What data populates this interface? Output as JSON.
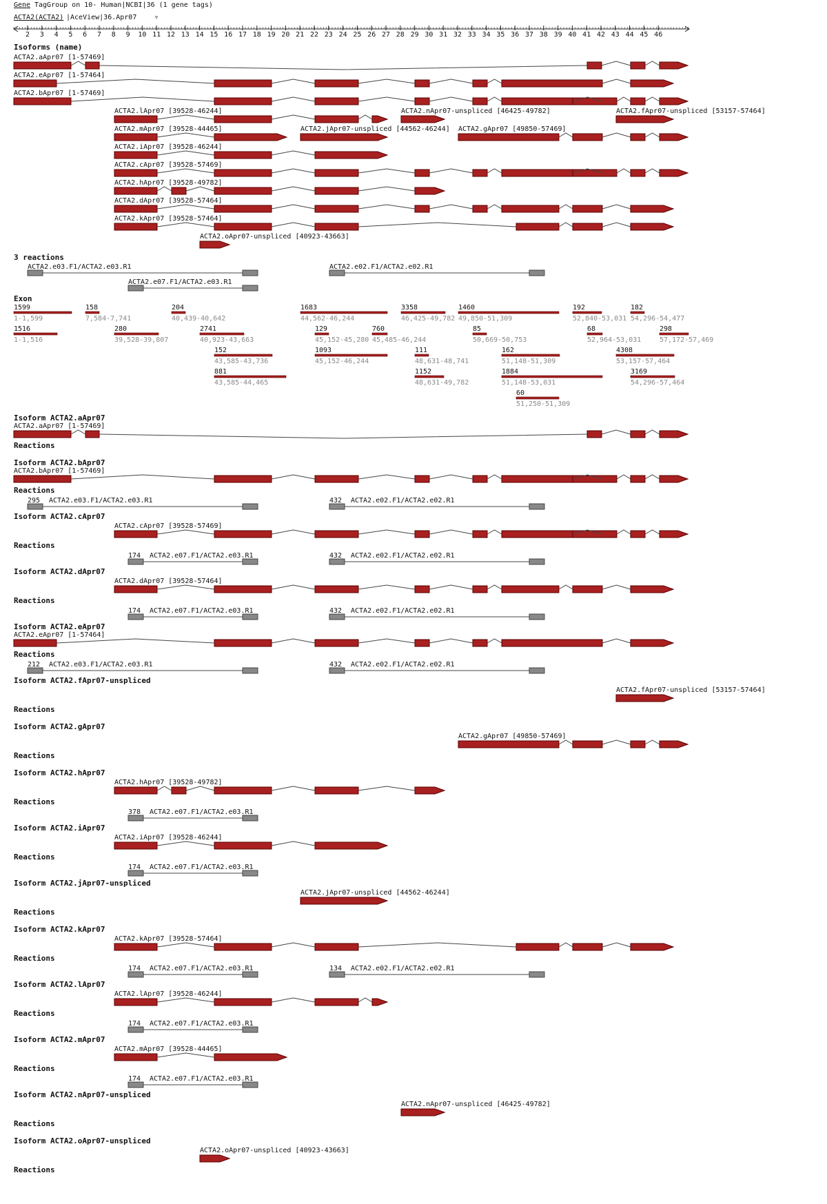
{
  "header": {
    "line1_a": "Gene",
    "line1_b": "TagGroup on 10- Human|NCBI|36 (1 gene tags)",
    "line2_a": "ACTA2(ACTA2)",
    "line2_b": "|AceView|36.Apr07",
    "link_glyph": "▿"
  },
  "ruler": {
    "labels": [
      "2",
      "3",
      "4",
      "5",
      "6",
      "7",
      "8",
      "9",
      "10",
      "11",
      "12",
      "13",
      "14",
      "15",
      "16",
      "17",
      "18",
      "19",
      "20",
      "21",
      "22",
      "23",
      "24",
      "25",
      "26",
      "27",
      "28",
      "29",
      "30",
      "31",
      "32",
      "33",
      "34",
      "35",
      "36",
      "37",
      "38",
      "39",
      "40",
      "41",
      "42",
      "43",
      "44",
      "45",
      "46"
    ]
  },
  "colors": {
    "exon_fill": "#a82020",
    "exon_stroke": "#5a0000",
    "primer": "#888888",
    "intron": "#444444",
    "text": "#111111",
    "muted": "#888888"
  },
  "sections": {
    "isoforms": "Isoforms (name)",
    "reactions": "3 reactions",
    "exon": "Exon"
  },
  "iso": {
    "a": "ACTA2.aApr07 [1-57469]",
    "e": "ACTA2.eApr07 [1-57464]",
    "b": "ACTA2.bApr07 [1-57469]",
    "l": "ACTA2.lApr07 [39528-46244]",
    "n": "ACTA2.nApr07-unspliced [46425-49782]",
    "f": "ACTA2.fApr07-unspliced [53157-57464]",
    "m": "ACTA2.mApr07 [39528-44465]",
    "j": "ACTA2.jApr07-unspliced [44562-46244]",
    "g": "ACTA2.gApr07 [49850-57469]",
    "i": "ACTA2.iApr07 [39528-46244]",
    "c": "ACTA2.cApr07 [39528-57469]",
    "h": "ACTA2.hApr07 [39528-49782]",
    "d": "ACTA2.dApr07 [39528-57464]",
    "k": "ACTA2.kApr07 [39528-57464]",
    "o": "ACTA2.oApr07-unspliced [40923-43663]"
  },
  "rx": {
    "r03": "ACTA2.e03.F1/ACTA2.e03.R1",
    "r02": "ACTA2.e02.F1/ACTA2.e02.R1",
    "r07": "ACTA2.e07.F1/ACTA2.e03.R1"
  },
  "exons": [
    {
      "n": "1599",
      "r": "1-1,599"
    },
    {
      "n": "158",
      "r": "7,584-7,741"
    },
    {
      "n": "204",
      "r": "40,439-40,642"
    },
    {
      "n": "1683",
      "r": "44,562-46,244"
    },
    {
      "n": "3358",
      "r": "46,425-49,782"
    },
    {
      "n": "1460",
      "r": "49,850-51,309"
    },
    {
      "n": "192",
      "r": "52,840-53,031"
    },
    {
      "n": "182",
      "r": "54,296-54,477"
    },
    {
      "n": "1516",
      "r": "1-1,516"
    },
    {
      "n": "280",
      "r": "39,528-39,807"
    },
    {
      "n": "2741",
      "r": "40,923-43,663"
    },
    {
      "n": "129",
      "r": "45,152-45,280"
    },
    {
      "n": "760",
      "r": "45,485-46,244"
    },
    {
      "n": "85",
      "r": "50,669-50,753"
    },
    {
      "n": "68",
      "r": "52,964-53,031"
    },
    {
      "n": "298",
      "r": "57,172-57,469"
    },
    {
      "n": "152",
      "r": "43,585-43,736"
    },
    {
      "n": "1093",
      "r": "45,152-46,244"
    },
    {
      "n": "111",
      "r": "48,631-48,741"
    },
    {
      "n": "162",
      "r": "51,148-51,309"
    },
    {
      "n": "4308",
      "r": "53,157-57,464"
    },
    {
      "n": "881",
      "r": "43,585-44,465"
    },
    {
      "n": "1152",
      "r": "48,631-49,782"
    },
    {
      "n": "1884",
      "r": "51,148-53,031"
    },
    {
      "n": "3169",
      "r": "54,296-57,464"
    },
    {
      "n": "60",
      "r": "51,250-51,309"
    }
  ],
  "details": [
    {
      "title": "Isoform ACTA2.aApr07",
      "iso": "ACTA2.aApr07 [1-57469]",
      "reactions_label": "Reactions",
      "rx": []
    },
    {
      "title": "Isoform ACTA2.bApr07",
      "iso": "ACTA2.bApr07 [1-57469]",
      "reactions_label": "Reactions",
      "rx": [
        {
          "count": "295",
          "name": "ACTA2.e03.F1/ACTA2.e03.R1"
        },
        {
          "count": "432",
          "name": "ACTA2.e02.F1/ACTA2.e02.R1"
        }
      ]
    },
    {
      "title": "Isoform ACTA2.cApr07",
      "iso": "ACTA2.cApr07 [39528-57469]",
      "reactions_label": "Reactions",
      "rx": [
        {
          "count": "174",
          "name": "ACTA2.e07.F1/ACTA2.e03.R1"
        },
        {
          "count": "432",
          "name": "ACTA2.e02.F1/ACTA2.e02.R1"
        }
      ]
    },
    {
      "title": "Isoform ACTA2.dApr07",
      "iso": "ACTA2.dApr07 [39528-57464]",
      "reactions_label": "Reactions",
      "rx": [
        {
          "count": "174",
          "name": "ACTA2.e07.F1/ACTA2.e03.R1"
        },
        {
          "count": "432",
          "name": "ACTA2.e02.F1/ACTA2.e02.R1"
        }
      ]
    },
    {
      "title": "Isoform ACTA2.eApr07",
      "iso": "ACTA2.eApr07 [1-57464]",
      "reactions_label": "Reactions",
      "rx": [
        {
          "count": "212",
          "name": "ACTA2.e03.F1/ACTA2.e03.R1"
        },
        {
          "count": "432",
          "name": "ACTA2.e02.F1/ACTA2.e02.R1"
        }
      ]
    },
    {
      "title": "Isoform ACTA2.fApr07-unspliced",
      "iso": "ACTA2.fApr07-unspliced [53157-57464]",
      "reactions_label": "Reactions",
      "rx": []
    },
    {
      "title": "Isoform ACTA2.gApr07",
      "iso": "ACTA2.gApr07 [49850-57469]",
      "reactions_label": "Reactions",
      "rx": []
    },
    {
      "title": "Isoform ACTA2.hApr07",
      "iso": "ACTA2.hApr07 [39528-49782]",
      "reactions_label": "Reactions",
      "rx": [
        {
          "count": "378",
          "name": "ACTA2.e07.F1/ACTA2.e03.R1"
        }
      ]
    },
    {
      "title": "Isoform ACTA2.iApr07",
      "iso": "ACTA2.iApr07 [39528-46244]",
      "reactions_label": "Reactions",
      "rx": [
        {
          "count": "174",
          "name": "ACTA2.e07.F1/ACTA2.e03.R1"
        }
      ]
    },
    {
      "title": "Isoform ACTA2.jApr07-unspliced",
      "iso": "ACTA2.jApr07-unspliced [44562-46244]",
      "reactions_label": "Reactions",
      "rx": []
    },
    {
      "title": "Isoform ACTA2.kApr07",
      "iso": "ACTA2.kApr07 [39528-57464]",
      "reactions_label": "Reactions",
      "rx": [
        {
          "count": "174",
          "name": "ACTA2.e07.F1/ACTA2.e03.R1"
        },
        {
          "count": "134",
          "name": "ACTA2.e02.F1/ACTA2.e02.R1"
        }
      ]
    },
    {
      "title": "Isoform ACTA2.lApr07",
      "iso": "ACTA2.lApr07 [39528-46244]",
      "reactions_label": "Reactions",
      "rx": [
        {
          "count": "174",
          "name": "ACTA2.e07.F1/ACTA2.e03.R1"
        }
      ]
    },
    {
      "title": "Isoform ACTA2.mApr07",
      "iso": "ACTA2.mApr07 [39528-44465]",
      "reactions_label": "Reactions",
      "rx": [
        {
          "count": "174",
          "name": "ACTA2.e07.F1/ACTA2.e03.R1"
        }
      ]
    },
    {
      "title": "Isoform ACTA2.nApr07-unspliced",
      "iso": "ACTA2.nApr07-unspliced [46425-49782]",
      "reactions_label": "Reactions",
      "rx": []
    },
    {
      "title": "Isoform ACTA2.oApr07-unspliced",
      "iso": "ACTA2.oApr07-unspliced [40923-43663]",
      "reactions_label": "Reactions",
      "rx": []
    }
  ]
}
